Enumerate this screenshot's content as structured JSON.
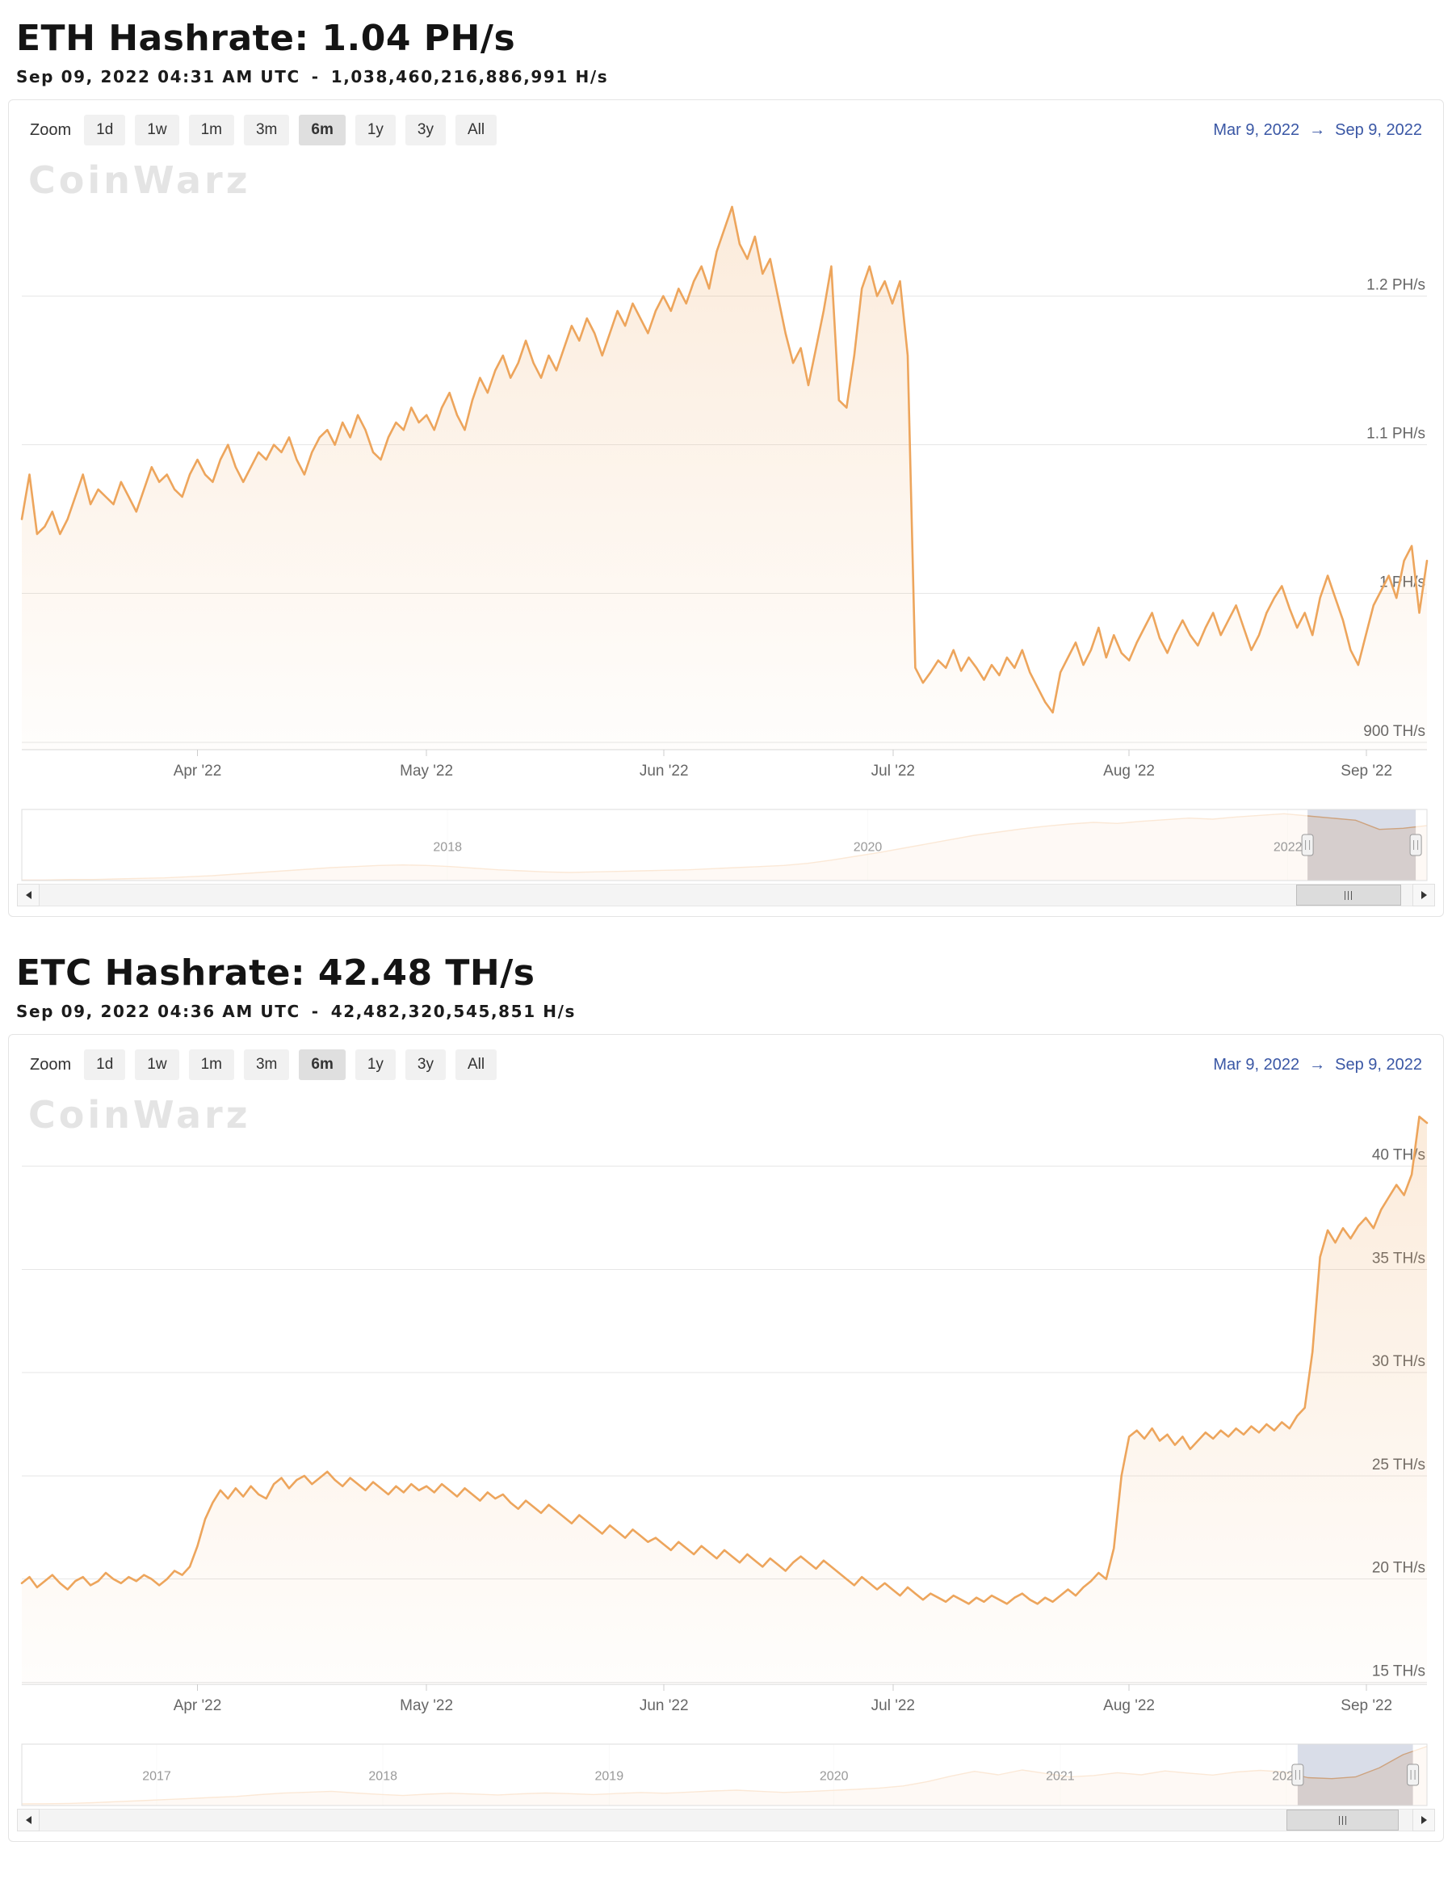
{
  "watermark": "CoinWarz",
  "zoom": {
    "label": "Zoom",
    "buttons": [
      "1d",
      "1w",
      "1m",
      "3m",
      "6m",
      "1y",
      "3y",
      "All"
    ],
    "active_index": 4
  },
  "eth": {
    "title": "ETH Hashrate: 1.04 PH/s",
    "timestamp": "Sep 09, 2022 04:31 AM UTC",
    "separator": "-",
    "full_value": "1,038,460,216,886,991 H/s",
    "range_from": "Mar 9, 2022",
    "range_arrow": "→",
    "range_to": "Sep 9, 2022"
  },
  "etc": {
    "title": "ETC Hashrate: 42.48 TH/s",
    "timestamp": "Sep 09, 2022 04:36 AM UTC",
    "separator": "-",
    "full_value": "42,482,320,545,851 H/s",
    "range_from": "Mar 9, 2022",
    "range_arrow": "→",
    "range_to": "Sep 9, 2022"
  },
  "colors": {
    "line": "#eda55c",
    "grid": "#e6e6e6",
    "axis_line": "#d8d8d8",
    "tick": "#cccccc",
    "axis_label": "#666666",
    "link": "#3a57a5",
    "nav_mask": "rgba(255,255,255,0.75)",
    "nav_select": "rgba(145,158,188,0.35)"
  },
  "chart_data": [
    {
      "id": "eth-main",
      "type": "area",
      "title": "ETH Hashrate",
      "unit": "PH/s",
      "x_start": "Mar 9, 2022",
      "x_end": "Sep 9, 2022",
      "ylim": [
        0.895,
        1.285
      ],
      "yticks": [
        {
          "v": 0.9,
          "label": "900 TH/s"
        },
        {
          "v": 1.0,
          "label": "1 PH/s"
        },
        {
          "v": 1.1,
          "label": "1.1 PH/s"
        },
        {
          "v": 1.2,
          "label": "1.2 PH/s"
        }
      ],
      "xticks": [
        {
          "f": 0.125,
          "label": "Apr '22"
        },
        {
          "f": 0.288,
          "label": "May '22"
        },
        {
          "f": 0.457,
          "label": "Jun '22"
        },
        {
          "f": 0.62,
          "label": "Jul '22"
        },
        {
          "f": 0.788,
          "label": "Aug '22"
        },
        {
          "f": 0.957,
          "label": "Sep '22"
        }
      ],
      "values": [
        1.05,
        1.08,
        1.04,
        1.045,
        1.055,
        1.04,
        1.05,
        1.065,
        1.08,
        1.06,
        1.07,
        1.065,
        1.06,
        1.075,
        1.065,
        1.055,
        1.07,
        1.085,
        1.075,
        1.08,
        1.07,
        1.065,
        1.08,
        1.09,
        1.08,
        1.075,
        1.09,
        1.1,
        1.085,
        1.075,
        1.085,
        1.095,
        1.09,
        1.1,
        1.095,
        1.105,
        1.09,
        1.08,
        1.095,
        1.105,
        1.11,
        1.1,
        1.115,
        1.105,
        1.12,
        1.11,
        1.095,
        1.09,
        1.105,
        1.115,
        1.11,
        1.125,
        1.115,
        1.12,
        1.11,
        1.125,
        1.135,
        1.12,
        1.11,
        1.13,
        1.145,
        1.135,
        1.15,
        1.16,
        1.145,
        1.155,
        1.17,
        1.155,
        1.145,
        1.16,
        1.15,
        1.165,
        1.18,
        1.17,
        1.185,
        1.175,
        1.16,
        1.175,
        1.19,
        1.18,
        1.195,
        1.185,
        1.175,
        1.19,
        1.2,
        1.19,
        1.205,
        1.195,
        1.21,
        1.22,
        1.205,
        1.23,
        1.245,
        1.26,
        1.235,
        1.225,
        1.24,
        1.215,
        1.225,
        1.2,
        1.175,
        1.155,
        1.165,
        1.14,
        1.165,
        1.19,
        1.22,
        1.13,
        1.125,
        1.16,
        1.205,
        1.22,
        1.2,
        1.21,
        1.195,
        1.21,
        1.16,
        0.95,
        0.94,
        0.947,
        0.955,
        0.95,
        0.962,
        0.948,
        0.957,
        0.95,
        0.942,
        0.952,
        0.945,
        0.957,
        0.95,
        0.962,
        0.947,
        0.937,
        0.927,
        0.92,
        0.947,
        0.957,
        0.967,
        0.952,
        0.962,
        0.977,
        0.957,
        0.972,
        0.96,
        0.955,
        0.967,
        0.977,
        0.987,
        0.97,
        0.96,
        0.972,
        0.982,
        0.972,
        0.965,
        0.977,
        0.987,
        0.972,
        0.982,
        0.992,
        0.977,
        0.962,
        0.972,
        0.987,
        0.997,
        1.005,
        0.99,
        0.977,
        0.987,
        0.972,
        0.997,
        1.012,
        0.997,
        0.982,
        0.962,
        0.952,
        0.972,
        0.992,
        1.002,
        1.012,
        0.997,
        1.022,
        1.032,
        0.987,
        1.022
      ]
    },
    {
      "id": "eth-nav",
      "type": "navigator",
      "title": "ETH Hashrate full history navigator",
      "ylim": [
        0,
        1.32
      ],
      "labels": [
        {
          "f": 0.303,
          "label": "2018"
        },
        {
          "f": 0.602,
          "label": "2020"
        },
        {
          "f": 0.901,
          "label": "2022"
        }
      ],
      "selection": [
        0.915,
        0.992
      ],
      "values": [
        0.01,
        0.01,
        0.02,
        0.02,
        0.03,
        0.04,
        0.05,
        0.07,
        0.09,
        0.12,
        0.15,
        0.18,
        0.21,
        0.24,
        0.26,
        0.28,
        0.29,
        0.28,
        0.26,
        0.23,
        0.2,
        0.18,
        0.16,
        0.15,
        0.16,
        0.17,
        0.18,
        0.19,
        0.2,
        0.22,
        0.24,
        0.26,
        0.28,
        0.32,
        0.38,
        0.45,
        0.52,
        0.6,
        0.68,
        0.76,
        0.84,
        0.9,
        0.96,
        1.01,
        1.05,
        1.08,
        1.06,
        1.1,
        1.13,
        1.16,
        1.14,
        1.18,
        1.21,
        1.24,
        1.2,
        1.16,
        1.12,
        0.95,
        0.97,
        1.02
      ]
    },
    {
      "id": "etc-main",
      "type": "area",
      "title": "ETC Hashrate",
      "unit": "TH/s",
      "x_start": "Mar 9, 2022",
      "x_end": "Sep 9, 2022",
      "ylim": [
        14.9,
        43.0
      ],
      "yticks": [
        {
          "v": 15,
          "label": "15 TH/s"
        },
        {
          "v": 20,
          "label": "20 TH/s"
        },
        {
          "v": 25,
          "label": "25 TH/s"
        },
        {
          "v": 30,
          "label": "30 TH/s"
        },
        {
          "v": 35,
          "label": "35 TH/s"
        },
        {
          "v": 40,
          "label": "40 TH/s"
        }
      ],
      "xticks": [
        {
          "f": 0.125,
          "label": "Apr '22"
        },
        {
          "f": 0.288,
          "label": "May '22"
        },
        {
          "f": 0.457,
          "label": "Jun '22"
        },
        {
          "f": 0.62,
          "label": "Jul '22"
        },
        {
          "f": 0.788,
          "label": "Aug '22"
        },
        {
          "f": 0.957,
          "label": "Sep '22"
        }
      ],
      "values": [
        19.8,
        20.1,
        19.6,
        19.9,
        20.2,
        19.8,
        19.5,
        19.9,
        20.1,
        19.7,
        19.9,
        20.3,
        20,
        19.8,
        20.1,
        19.9,
        20.2,
        20,
        19.7,
        20,
        20.4,
        20.2,
        20.6,
        21.6,
        22.9,
        23.7,
        24.3,
        23.9,
        24.4,
        24,
        24.5,
        24.1,
        23.9,
        24.6,
        24.9,
        24.4,
        24.8,
        25,
        24.6,
        24.9,
        25.2,
        24.8,
        24.5,
        24.9,
        24.6,
        24.3,
        24.7,
        24.4,
        24.1,
        24.5,
        24.2,
        24.6,
        24.3,
        24.5,
        24.2,
        24.6,
        24.3,
        24,
        24.4,
        24.1,
        23.8,
        24.2,
        23.9,
        24.1,
        23.7,
        23.4,
        23.8,
        23.5,
        23.2,
        23.6,
        23.3,
        23,
        22.7,
        23.1,
        22.8,
        22.5,
        22.2,
        22.6,
        22.3,
        22,
        22.4,
        22.1,
        21.8,
        22,
        21.7,
        21.4,
        21.8,
        21.5,
        21.2,
        21.6,
        21.3,
        21,
        21.4,
        21.1,
        20.8,
        21.2,
        20.9,
        20.6,
        21,
        20.7,
        20.4,
        20.8,
        21.1,
        20.8,
        20.5,
        20.9,
        20.6,
        20.3,
        20,
        19.7,
        20.1,
        19.8,
        19.5,
        19.8,
        19.5,
        19.2,
        19.6,
        19.3,
        19,
        19.3,
        19.1,
        18.9,
        19.2,
        19,
        18.8,
        19.1,
        18.9,
        19.2,
        19,
        18.8,
        19.1,
        19.3,
        19,
        18.8,
        19.1,
        18.9,
        19.2,
        19.5,
        19.2,
        19.6,
        19.9,
        20.3,
        20,
        21.5,
        25,
        26.9,
        27.2,
        26.8,
        27.3,
        26.7,
        27,
        26.5,
        26.9,
        26.3,
        26.7,
        27.1,
        26.8,
        27.2,
        26.9,
        27.3,
        27,
        27.4,
        27.1,
        27.5,
        27.2,
        27.6,
        27.3,
        27.9,
        28.3,
        31,
        35.6,
        36.9,
        36.3,
        37,
        36.5,
        37.1,
        37.5,
        37,
        37.9,
        38.5,
        39.1,
        38.6,
        39.6,
        42.4,
        42.1
      ]
    },
    {
      "id": "etc-nav",
      "type": "navigator",
      "title": "ETC Hashrate full history navigator",
      "ylim": [
        0,
        44
      ],
      "labels": [
        {
          "f": 0.096,
          "label": "2017"
        },
        {
          "f": 0.257,
          "label": "2018"
        },
        {
          "f": 0.418,
          "label": "2019"
        },
        {
          "f": 0.578,
          "label": "2020"
        },
        {
          "f": 0.739,
          "label": "2021"
        },
        {
          "f": 0.9,
          "label": "2022"
        }
      ],
      "selection": [
        0.908,
        0.99
      ],
      "values": [
        1.2,
        1.3,
        1.5,
        2,
        2.8,
        3.5,
        4.2,
        5,
        5.8,
        6.5,
        7.8,
        8.9,
        9.5,
        10.2,
        9,
        8,
        7.2,
        8.1,
        8.8,
        8.2,
        7.6,
        8.4,
        9,
        8.5,
        7.9,
        8.6,
        9.3,
        8.8,
        9.6,
        10.4,
        11,
        10.2,
        9.4,
        10,
        10.8,
        11.6,
        12.5,
        14,
        17,
        21,
        24.5,
        22,
        25.5,
        23,
        20.5,
        21.5,
        23.5,
        22,
        24.8,
        23.2,
        21.8,
        24,
        25.2,
        24,
        20,
        19.3,
        20.5,
        27,
        36.5,
        42.3
      ]
    }
  ]
}
